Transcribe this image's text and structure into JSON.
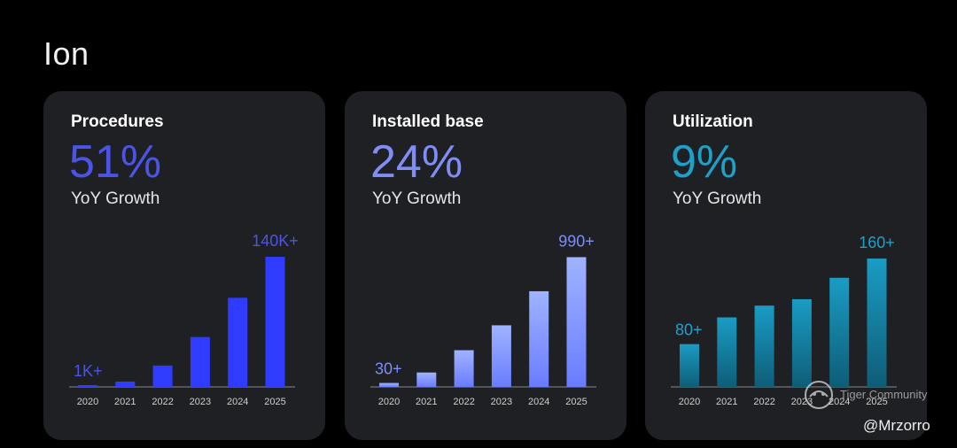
{
  "page": {
    "title": "Ion"
  },
  "chart_data": [
    {
      "type": "bar",
      "title": "Procedures",
      "headline": "51%",
      "subtitle": "YoY Growth",
      "categories": [
        "2020",
        "2021",
        "2022",
        "2023",
        "2024",
        "2025"
      ],
      "values": [
        1,
        6,
        24,
        56,
        100,
        146
      ],
      "units": "thousands",
      "start_label": "1K+",
      "end_label": "140K+",
      "ylim": [
        0,
        150
      ],
      "color_top": "#2f3cff",
      "color_bottom": "#2f3cff",
      "accent": "#4a55e6"
    },
    {
      "type": "bar",
      "title": "Installed base",
      "headline": "24%",
      "subtitle": "YoY Growth",
      "categories": [
        "2020",
        "2021",
        "2022",
        "2023",
        "2024",
        "2025"
      ],
      "values": [
        30,
        110,
        280,
        470,
        730,
        990
      ],
      "start_label": "30+",
      "end_label": "990+",
      "ylim": [
        0,
        1020
      ],
      "color_top": "#9fb3ff",
      "color_bottom": "#6a7cff",
      "accent": "#7f8df5"
    },
    {
      "type": "bar",
      "title": "Utilization",
      "headline": "9%",
      "subtitle": "YoY Growth",
      "categories": [
        "2020",
        "2021",
        "2022",
        "2023",
        "2024",
        "2025"
      ],
      "values": [
        80,
        105,
        116,
        122,
        142,
        160
      ],
      "start_label": "80+",
      "end_label": "160+",
      "ylim": [
        40,
        165
      ],
      "color_top": "#1a9cc4",
      "color_bottom": "#0e5d77",
      "accent": "#1fa0c8"
    }
  ],
  "watermark": {
    "text": "Tiger Community"
  },
  "credit": {
    "text": "@Mrzorro"
  }
}
